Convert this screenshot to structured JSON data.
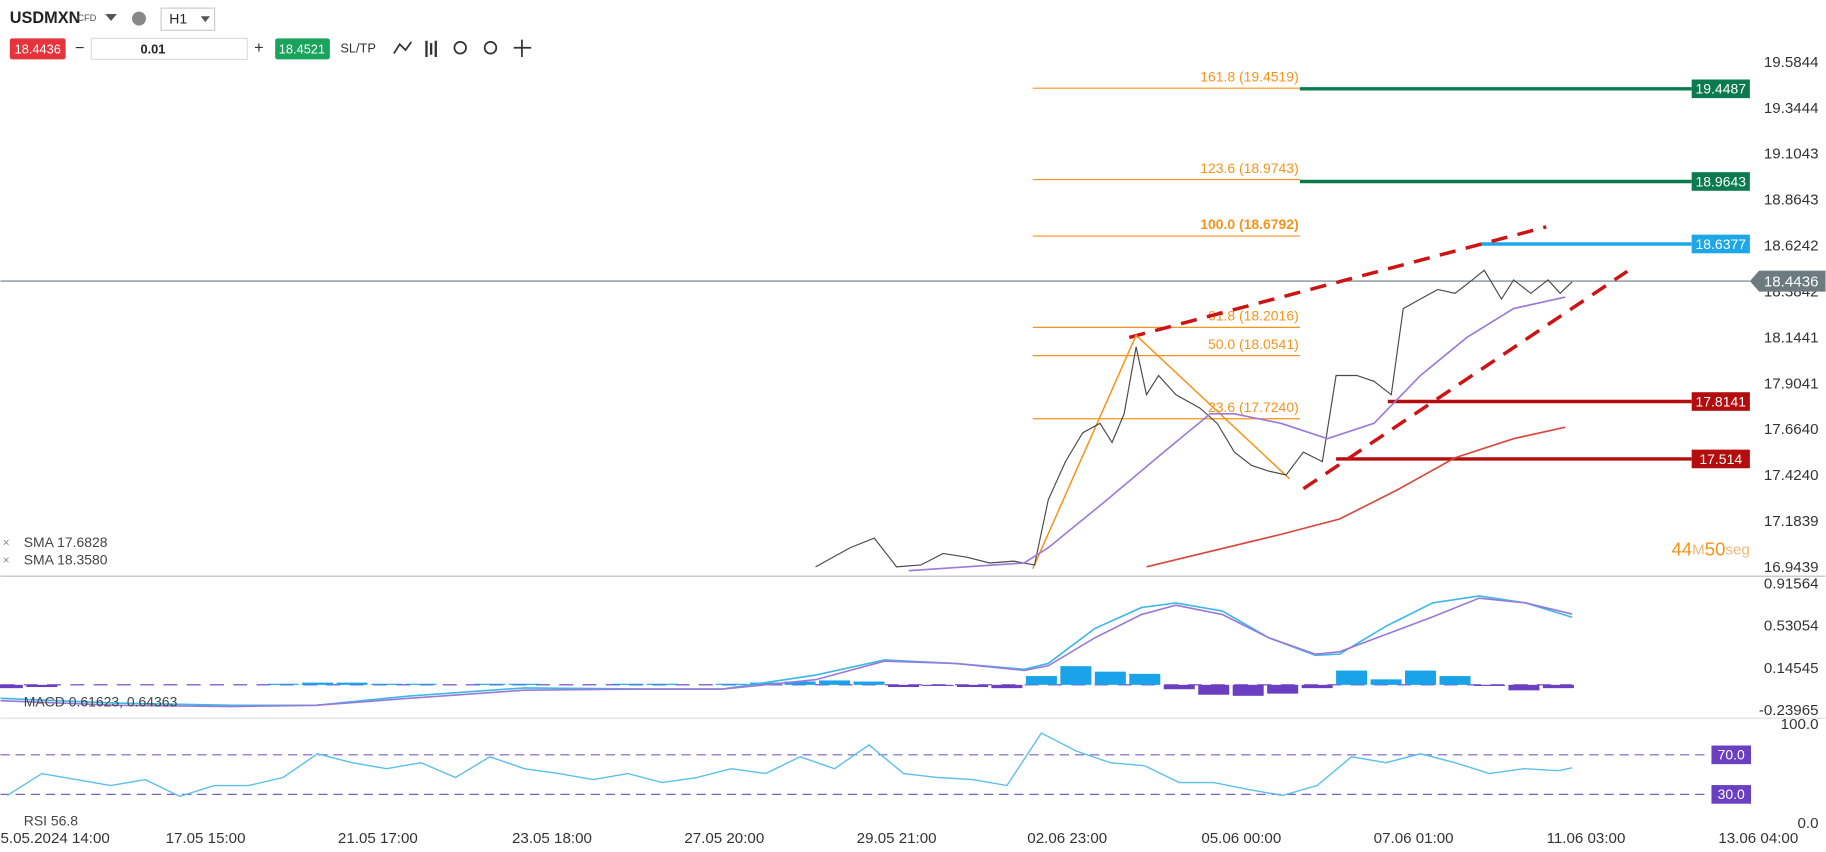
{
  "toolbar": {
    "symbol": "USDMXN",
    "badge": "CFD",
    "timeframe": "H1",
    "sell_price": "18.4436",
    "volume": "0.01",
    "buy_price": "18.4521",
    "sltp": "SL/TP"
  },
  "chart_data": [
    {
      "type": "line",
      "xlim": [
        -0.34,
        10.25
      ],
      "xticks": [
        {
          "value": -0.15,
          "label": "5.05.2024 14:00"
        },
        {
          "value": 0.85,
          "label": "17.05 15:00"
        },
        {
          "value": 1.85,
          "label": "21.05 17:00"
        },
        {
          "value": 2.86,
          "label": "23.05 18:00"
        },
        {
          "value": 3.86,
          "label": "27.05 20:00"
        },
        {
          "value": 4.86,
          "label": "29.05 21:00"
        },
        {
          "value": 5.85,
          "label": "02.06 23:00"
        },
        {
          "value": 6.86,
          "label": "05.06 00:00"
        },
        {
          "value": 7.86,
          "label": "07.06 01:00"
        },
        {
          "value": 8.86,
          "label": "11.06 03:00"
        },
        {
          "value": 9.86,
          "label": "13.06 04:00"
        }
      ],
      "ylim": [
        16.9439,
        19.5844
      ],
      "yticks": [
        19.5844,
        19.3444,
        19.1043,
        18.8643,
        18.6242,
        18.3842,
        18.1441,
        17.9041,
        {
          "value": 17.664,
          "label": "17.6640"
        },
        {
          "value": 17.424,
          "label": "17.4240"
        },
        17.1839,
        16.9439
      ],
      "current_price": 18.4436,
      "series": [
        {
          "color": "#4a4a4a",
          "x": [
            4.39,
            4.59,
            4.73,
            4.86,
            5.0,
            5.13,
            5.27,
            5.4,
            5.54,
            5.66,
            5.74,
            5.84,
            5.94,
            6.04,
            6.11,
            6.18,
            6.25,
            6.31,
            6.38,
            6.48,
            6.62,
            6.72,
            6.82,
            6.92,
            7.02,
            7.12,
            7.22,
            7.33,
            7.41,
            7.53,
            7.63,
            7.73,
            7.8,
            7.9,
            8.0,
            8.1,
            8.2,
            8.27,
            8.37,
            8.44,
            8.54,
            8.64,
            8.71,
            8.78
          ],
          "values": [
            16.95,
            17.05,
            17.1,
            16.95,
            16.96,
            17.02,
            17.0,
            16.97,
            16.98,
            16.96,
            17.3,
            17.5,
            17.65,
            17.7,
            17.6,
            17.75,
            18.1,
            17.85,
            17.95,
            17.85,
            17.78,
            17.7,
            17.55,
            17.48,
            17.45,
            17.43,
            17.55,
            17.5,
            17.95,
            17.95,
            17.92,
            17.85,
            18.3,
            18.35,
            18.4,
            18.38,
            18.45,
            18.5,
            18.35,
            18.45,
            18.38,
            18.45,
            18.38,
            18.44
          ]
        },
        {
          "name": "SMA 17.6828",
          "color": "#d9473c",
          "x": [
            6.31,
            7.09,
            7.43,
            7.76,
            8.1,
            8.44,
            8.74
          ],
          "values": [
            16.95,
            17.12,
            17.2,
            17.35,
            17.52,
            17.62,
            17.68
          ]
        },
        {
          "name": "SMA 18.3580",
          "color": "#9a7ad8",
          "x": [
            4.93,
            5.6,
            5.74,
            6.08,
            6.41,
            6.68,
            6.82,
            7.09,
            7.36,
            7.63,
            7.9,
            8.17,
            8.44,
            8.74
          ],
          "values": [
            16.93,
            16.97,
            17.05,
            17.3,
            17.55,
            17.75,
            17.75,
            17.7,
            17.62,
            17.7,
            17.95,
            18.15,
            18.3,
            18.36
          ]
        }
      ],
      "fibonacci": {
        "color": "#f7931a",
        "x": [
          5.65,
          7.2
        ],
        "levels": [
          {
            "label": "161.8 (19.4519)",
            "value": 19.4519
          },
          {
            "label": "123.6 (18.9743)",
            "value": 18.9743
          },
          {
            "label": "100.0 (18.6792)",
            "value": 18.6792
          },
          {
            "label": "61.8 (18.2016)",
            "value": 18.2016
          },
          {
            "label": "50.0 (18.0541)",
            "value": 18.0541
          },
          {
            "label": "23.6 (17.7240)",
            "value": 17.724
          }
        ]
      },
      "zigzag": {
        "color": "#f7931a",
        "x": [
          5.65,
          6.25,
          7.14
        ],
        "values": [
          16.94,
          18.16,
          17.41
        ]
      },
      "trendlines": [
        {
          "color": "#cc1414",
          "x": [
            6.21,
            8.63
          ],
          "values": [
            18.149,
            18.727
          ]
        },
        {
          "color": "#cc1414",
          "x": [
            7.22,
            9.1
          ],
          "values": [
            17.358,
            18.495
          ]
        }
      ],
      "levels": [
        {
          "value": 19.4487,
          "color": "#0b7a4f",
          "x": 7.2
        },
        {
          "value": 18.9643,
          "color": "#0b7a4f",
          "x": 7.2
        },
        {
          "value": 18.6377,
          "color": "#1ea7e8",
          "x": 8.25
        },
        {
          "value": 17.8141,
          "color": "#b30d0d",
          "x": 7.71
        },
        {
          "value": 17.514,
          "color": "#b30d0d",
          "x": 7.41
        }
      ],
      "timer": [
        "44",
        "M",
        "50",
        "seg"
      ]
    },
    {
      "type": "line",
      "label": "MACD 0.61623, 0.64363",
      "ylim": [
        -0.23965,
        0.91564
      ],
      "yticks": [
        0.91564,
        0.53054,
        0.14545,
        -0.23965
      ],
      "x": [
        -0.34,
        0.34,
        1.01,
        1.49,
        2.03,
        2.7,
        3.38,
        3.85,
        4.39,
        4.79,
        5.2,
        5.6,
        5.74,
        6.01,
        6.28,
        6.48,
        6.75,
        7.02,
        7.29,
        7.43,
        7.7,
        7.97,
        8.24,
        8.51,
        8.78
      ],
      "series": [
        {
          "color": "#3cb8ea",
          "values": [
            -0.123,
            -0.166,
            -0.187,
            -0.187,
            -0.102,
            -0.028,
            -0.038,
            -0.038,
            0.089,
            0.227,
            0.195,
            0.142,
            0.195,
            0.513,
            0.704,
            0.746,
            0.672,
            0.428,
            0.269,
            0.28,
            0.534,
            0.746,
            0.81,
            0.746,
            0.616
          ]
        },
        {
          "color": "#9a7ad8",
          "values": [
            -0.144,
            -0.187,
            -0.197,
            -0.187,
            -0.123,
            -0.049,
            -0.038,
            -0.038,
            0.046,
            0.216,
            0.195,
            0.131,
            0.174,
            0.428,
            0.64,
            0.725,
            0.64,
            0.428,
            0.28,
            0.301,
            0.46,
            0.619,
            0.789,
            0.746,
            0.644
          ]
        }
      ],
      "histogram": {
        "positive_color": "#1aa3e8",
        "negative_color": "#6a3fc1",
        "x": [
          -0.3,
          -0.1,
          0.1,
          0.3,
          0.5,
          0.7,
          0.9,
          1.1,
          1.3,
          1.5,
          1.7,
          1.9,
          2.1,
          2.3,
          2.5,
          2.7,
          2.9,
          3.1,
          3.3,
          3.5,
          3.7,
          3.9,
          4.1,
          4.3,
          4.5,
          4.7,
          4.9,
          5.1,
          5.3,
          5.5,
          5.7,
          5.9,
          6.1,
          6.3,
          6.5,
          6.7,
          6.9,
          7.1,
          7.3,
          7.5,
          7.7,
          7.9,
          8.1,
          8.3,
          8.5,
          8.7
        ],
        "values": [
          -0.03,
          -0.02,
          0,
          0,
          0,
          0,
          0,
          0,
          0.01,
          0.02,
          0.02,
          0.01,
          0.01,
          0,
          0.01,
          0.01,
          0,
          0,
          0.01,
          0.01,
          0,
          0.01,
          0.02,
          0.03,
          0.04,
          0.03,
          -0.02,
          -0.01,
          -0.02,
          -0.03,
          0.08,
          0.17,
          0.12,
          0.1,
          -0.04,
          -0.09,
          -0.1,
          -0.08,
          -0.03,
          0.13,
          0.05,
          0.13,
          0.08,
          -0.01,
          -0.05,
          -0.03
        ]
      }
    },
    {
      "type": "line",
      "label": "RSI 56.8",
      "ylim": [
        0,
        100
      ],
      "yticks": [
        {
          "value": 100,
          "label": "100.0"
        },
        {
          "value": 0,
          "label": "0.0"
        }
      ],
      "bands": [
        {
          "value": 70,
          "label": "70.0"
        },
        {
          "value": 30,
          "label": "30.0"
        }
      ],
      "color": "#5bc0ea",
      "x": [
        -0.3,
        -0.1,
        0.1,
        0.3,
        0.5,
        0.7,
        0.9,
        1.1,
        1.3,
        1.5,
        1.7,
        1.9,
        2.1,
        2.3,
        2.5,
        2.7,
        2.9,
        3.1,
        3.3,
        3.5,
        3.7,
        3.9,
        4.1,
        4.3,
        4.5,
        4.7,
        4.9,
        5.1,
        5.3,
        5.5,
        5.7,
        5.9,
        6.1,
        6.3,
        6.5,
        6.7,
        6.9,
        7.1,
        7.3,
        7.5,
        7.7,
        7.9,
        8.1,
        8.3,
        8.5,
        8.7,
        8.78
      ],
      "values": [
        29,
        51,
        45,
        39,
        45,
        28,
        39,
        39,
        47,
        71,
        62,
        56,
        62,
        47,
        68,
        56,
        51,
        45,
        51,
        42,
        47,
        56,
        51,
        68,
        56,
        80,
        51,
        47,
        45,
        39,
        92,
        74,
        62,
        59,
        42,
        42,
        35,
        29,
        39,
        68,
        62,
        71,
        62,
        51,
        56,
        54,
        56.8
      ]
    }
  ]
}
